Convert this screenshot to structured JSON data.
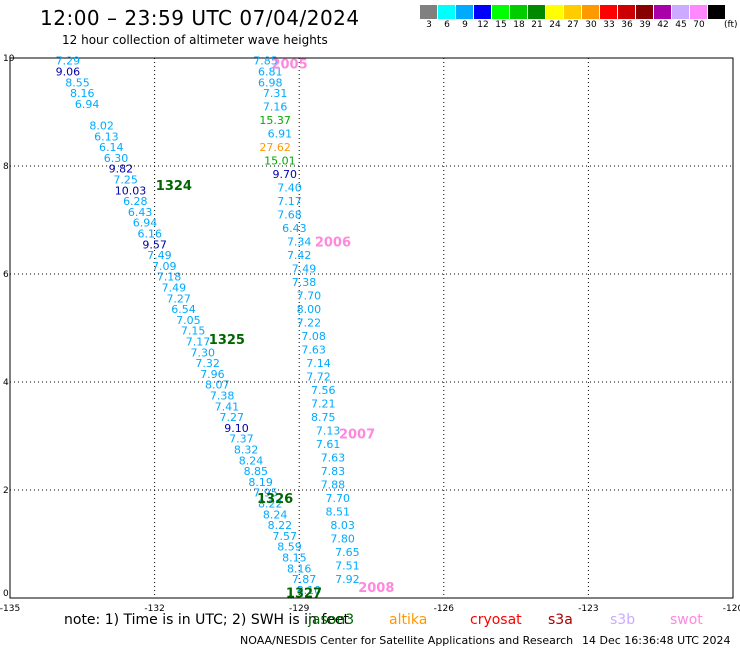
{
  "header": {
    "title": "12:00 – 23:59 UTC 07/04/2024",
    "subtitle": "12 hour collection of altimeter wave heights"
  },
  "legend": {
    "unit": "(ft)",
    "items": [
      {
        "label": "3",
        "color": "#808080"
      },
      {
        "label": "6",
        "color": "#00ffff"
      },
      {
        "label": "9",
        "color": "#00aaff"
      },
      {
        "label": "12",
        "color": "#0000ff"
      },
      {
        "label": "15",
        "color": "#00ff00"
      },
      {
        "label": "18",
        "color": "#00cc00"
      },
      {
        "label": "21",
        "color": "#008800"
      },
      {
        "label": "24",
        "color": "#ffff00"
      },
      {
        "label": "27",
        "color": "#ffcc00"
      },
      {
        "label": "30",
        "color": "#ff9900"
      },
      {
        "label": "33",
        "color": "#ff0000"
      },
      {
        "label": "36",
        "color": "#cc0000"
      },
      {
        "label": "39",
        "color": "#880000"
      },
      {
        "label": "42",
        "color": "#aa00aa"
      },
      {
        "label": "45",
        "color": "#ccaaff"
      },
      {
        "label": "70",
        "color": "#ff88ff"
      },
      {
        "label": "",
        "color": "#000000"
      }
    ]
  },
  "axes": {
    "lon_ticks": [
      "-135",
      "-132",
      "-129",
      "-126",
      "-123",
      "-120"
    ],
    "lat_ticks": [
      "0",
      "2",
      "4",
      "6",
      "8",
      "10"
    ],
    "lon_range": [
      -135,
      -120
    ],
    "lat_range": [
      0,
      10
    ]
  },
  "chart_data": {
    "type": "scatter",
    "x_unit": "longitude",
    "y_unit": "latitude",
    "xlim": [
      -135,
      -120
    ],
    "ylim": [
      0,
      10
    ],
    "grid": true,
    "series": [
      {
        "color": "#00aaff",
        "points": [
          {
            "lon": -133.8,
            "lat": 9.95,
            "v": "7.29"
          },
          {
            "lon": -133.8,
            "lat": 9.75,
            "v": "9.06",
            "c": "#0000aa"
          },
          {
            "lon": -133.6,
            "lat": 9.55,
            "v": "8.55"
          },
          {
            "lon": -133.5,
            "lat": 9.35,
            "v": "8.16"
          },
          {
            "lon": -133.4,
            "lat": 9.15,
            "v": "6.94"
          },
          {
            "lon": -133.1,
            "lat": 8.75,
            "v": "8.02"
          },
          {
            "lon": -133.0,
            "lat": 8.55,
            "v": "6.13"
          },
          {
            "lon": -132.9,
            "lat": 8.35,
            "v": "6.14"
          },
          {
            "lon": -132.8,
            "lat": 8.15,
            "v": "6.30"
          },
          {
            "lon": -132.7,
            "lat": 7.95,
            "v": "9.82",
            "c": "#0000aa"
          },
          {
            "lon": -132.6,
            "lat": 7.75,
            "v": "7.25"
          },
          {
            "lon": -132.5,
            "lat": 7.55,
            "v": "10.03",
            "c": "#0000aa"
          },
          {
            "lon": -132.4,
            "lat": 7.35,
            "v": "6.28"
          },
          {
            "lon": -132.3,
            "lat": 7.15,
            "v": "6.43"
          },
          {
            "lon": -132.2,
            "lat": 6.95,
            "v": "6.94"
          },
          {
            "lon": -132.1,
            "lat": 6.75,
            "v": "6.16"
          },
          {
            "lon": -132.0,
            "lat": 6.55,
            "v": "9.57",
            "c": "#0000aa"
          },
          {
            "lon": -131.9,
            "lat": 6.35,
            "v": "7.49"
          },
          {
            "lon": -131.8,
            "lat": 6.15,
            "v": "7.09"
          },
          {
            "lon": -131.7,
            "lat": 5.95,
            "v": "7.18"
          },
          {
            "lon": -131.6,
            "lat": 5.75,
            "v": "7.49"
          },
          {
            "lon": -131.5,
            "lat": 5.55,
            "v": "7.27"
          },
          {
            "lon": -131.4,
            "lat": 5.35,
            "v": "6.54"
          },
          {
            "lon": -131.3,
            "lat": 5.15,
            "v": "7.05"
          },
          {
            "lon": -131.2,
            "lat": 4.95,
            "v": "7.15"
          },
          {
            "lon": -131.1,
            "lat": 4.75,
            "v": "7.17"
          },
          {
            "lon": -131.0,
            "lat": 4.55,
            "v": "7.30"
          },
          {
            "lon": -130.9,
            "lat": 4.35,
            "v": "7.32"
          },
          {
            "lon": -130.8,
            "lat": 4.15,
            "v": "7.96"
          },
          {
            "lon": -130.7,
            "lat": 3.95,
            "v": "8.07"
          },
          {
            "lon": -130.6,
            "lat": 3.75,
            "v": "7.38"
          },
          {
            "lon": -130.5,
            "lat": 3.55,
            "v": "7.41"
          },
          {
            "lon": -130.4,
            "lat": 3.35,
            "v": "7.27"
          },
          {
            "lon": -130.3,
            "lat": 3.15,
            "v": "9.10",
            "c": "#0000aa"
          },
          {
            "lon": -130.2,
            "lat": 2.95,
            "v": "7.37"
          },
          {
            "lon": -130.1,
            "lat": 2.75,
            "v": "8.32"
          },
          {
            "lon": -130.0,
            "lat": 2.55,
            "v": "8.24"
          },
          {
            "lon": -129.9,
            "lat": 2.35,
            "v": "8.85"
          },
          {
            "lon": -129.8,
            "lat": 2.15,
            "v": "8.19"
          },
          {
            "lon": -129.7,
            "lat": 1.95,
            "v": "7.95"
          },
          {
            "lon": -129.6,
            "lat": 1.75,
            "v": "8.22"
          },
          {
            "lon": -129.5,
            "lat": 1.55,
            "v": "8.24"
          },
          {
            "lon": -129.4,
            "lat": 1.35,
            "v": "8.22"
          },
          {
            "lon": -129.3,
            "lat": 1.15,
            "v": "7.57"
          },
          {
            "lon": -129.2,
            "lat": 0.95,
            "v": "8.59"
          },
          {
            "lon": -129.1,
            "lat": 0.75,
            "v": "8.15"
          },
          {
            "lon": -129.0,
            "lat": 0.55,
            "v": "8.16"
          },
          {
            "lon": -128.9,
            "lat": 0.35,
            "v": "7.87"
          },
          {
            "lon": -128.8,
            "lat": 0.15,
            "v": "8.10"
          }
        ]
      },
      {
        "color": "#00aaff",
        "points": [
          {
            "lon": -129.7,
            "lat": 9.95,
            "v": "7.85"
          },
          {
            "lon": -129.6,
            "lat": 9.75,
            "v": "6.81"
          },
          {
            "lon": -129.6,
            "lat": 9.55,
            "v": "6.98"
          },
          {
            "lon": -129.5,
            "lat": 9.35,
            "v": "7.31"
          },
          {
            "lon": -129.5,
            "lat": 9.1,
            "v": "7.16"
          },
          {
            "lon": -129.5,
            "lat": 8.85,
            "v": "15.37",
            "c": "#00aa00"
          },
          {
            "lon": -129.4,
            "lat": 8.6,
            "v": "6.91"
          },
          {
            "lon": -129.5,
            "lat": 8.35,
            "v": "27.62",
            "c": "#ff9900"
          },
          {
            "lon": -129.4,
            "lat": 8.1,
            "v": "15.01",
            "c": "#00aa00"
          },
          {
            "lon": -129.3,
            "lat": 7.85,
            "v": "9.70",
            "c": "#0000aa"
          },
          {
            "lon": -129.2,
            "lat": 7.6,
            "v": "7.40"
          },
          {
            "lon": -129.2,
            "lat": 7.35,
            "v": "7.17"
          },
          {
            "lon": -129.2,
            "lat": 7.1,
            "v": "7.68"
          },
          {
            "lon": -129.1,
            "lat": 6.85,
            "v": "6.43"
          },
          {
            "lon": -129.0,
            "lat": 6.6,
            "v": "7.34"
          },
          {
            "lon": -129.0,
            "lat": 6.35,
            "v": "7.42"
          },
          {
            "lon": -128.9,
            "lat": 6.1,
            "v": "7.49"
          },
          {
            "lon": -128.9,
            "lat": 5.85,
            "v": "7.38"
          },
          {
            "lon": -128.8,
            "lat": 5.6,
            "v": "7.70"
          },
          {
            "lon": -128.8,
            "lat": 5.35,
            "v": "8.00"
          },
          {
            "lon": -128.8,
            "lat": 5.1,
            "v": "7.22"
          },
          {
            "lon": -128.7,
            "lat": 4.85,
            "v": "7.08"
          },
          {
            "lon": -128.7,
            "lat": 4.6,
            "v": "7.63"
          },
          {
            "lon": -128.6,
            "lat": 4.35,
            "v": "7.14"
          },
          {
            "lon": -128.6,
            "lat": 4.1,
            "v": "7.72"
          },
          {
            "lon": -128.5,
            "lat": 3.85,
            "v": "7.56"
          },
          {
            "lon": -128.5,
            "lat": 3.6,
            "v": "7.21"
          },
          {
            "lon": -128.5,
            "lat": 3.35,
            "v": "8.75"
          },
          {
            "lon": -128.4,
            "lat": 3.1,
            "v": "7.13"
          },
          {
            "lon": -128.4,
            "lat": 2.85,
            "v": "7.61"
          },
          {
            "lon": -128.3,
            "lat": 2.6,
            "v": "7.63"
          },
          {
            "lon": -128.3,
            "lat": 2.35,
            "v": "7.83"
          },
          {
            "lon": -128.3,
            "lat": 2.1,
            "v": "7.88"
          },
          {
            "lon": -128.2,
            "lat": 1.85,
            "v": "7.70"
          },
          {
            "lon": -128.2,
            "lat": 1.6,
            "v": "8.51"
          },
          {
            "lon": -128.1,
            "lat": 1.35,
            "v": "8.03"
          },
          {
            "lon": -128.1,
            "lat": 1.1,
            "v": "7.80"
          },
          {
            "lon": -128.0,
            "lat": 0.85,
            "v": "7.65"
          },
          {
            "lon": -128.0,
            "lat": 0.6,
            "v": "7.51"
          },
          {
            "lon": -128.0,
            "lat": 0.35,
            "v": "7.92"
          }
        ]
      }
    ],
    "annotations": [
      {
        "text": "1324",
        "lon": -131.6,
        "lat": 7.65,
        "color": "#006600"
      },
      {
        "text": "1325",
        "lon": -130.5,
        "lat": 4.8,
        "color": "#006600"
      },
      {
        "text": "1326",
        "lon": -129.5,
        "lat": 1.85,
        "color": "#006600"
      },
      {
        "text": "1327",
        "lon": -128.9,
        "lat": 0.1,
        "color": "#006600"
      },
      {
        "text": "2005",
        "lon": -129.2,
        "lat": 9.9,
        "color": "#ff88dd"
      },
      {
        "text": "2006",
        "lon": -128.3,
        "lat": 6.6,
        "color": "#ff88dd"
      },
      {
        "text": "2007",
        "lon": -127.8,
        "lat": 3.05,
        "color": "#ff88dd"
      },
      {
        "text": "2008",
        "lon": -127.4,
        "lat": 0.2,
        "color": "#ff88dd"
      }
    ]
  },
  "footer": {
    "note": "note: 1) Time is in UTC; 2) SWH is in feet",
    "satellites": [
      {
        "label": "jason3",
        "color": "#006600"
      },
      {
        "label": "altika",
        "color": "#ff9900"
      },
      {
        "label": "cryosat",
        "color": "#ff0000"
      },
      {
        "label": "s3a",
        "color": "#aa0000"
      },
      {
        "label": "s3b",
        "color": "#ccaaff"
      },
      {
        "label": "swot",
        "color": "#ff88dd"
      }
    ],
    "credit": "NOAA/NESDIS Center for Satellite Applications and Research",
    "timestamp": "14 Dec 16:36:48 UTC 2024"
  }
}
